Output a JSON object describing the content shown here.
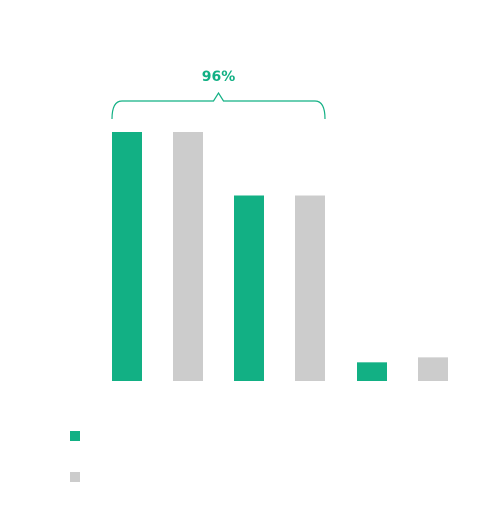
{
  "colors": {
    "primary": "#12b084",
    "secondary": "#cccccc",
    "annotation": "#12b084"
  },
  "chart_data": {
    "type": "bar",
    "title": "",
    "xlabel": "",
    "ylabel": "",
    "ylim": [
      0,
      100
    ],
    "categories": [
      "",
      "",
      ""
    ],
    "series": [
      {
        "name": "",
        "values": [
          100,
          74.5,
          7.5
        ],
        "color": "#12b084"
      },
      {
        "name": "",
        "values": [
          100,
          74.5,
          9.5
        ],
        "color": "#cccccc"
      }
    ],
    "annotation": {
      "text": "96%",
      "spans_groups": [
        0,
        1
      ]
    },
    "legend_position": "bottom-left",
    "grid": false
  }
}
